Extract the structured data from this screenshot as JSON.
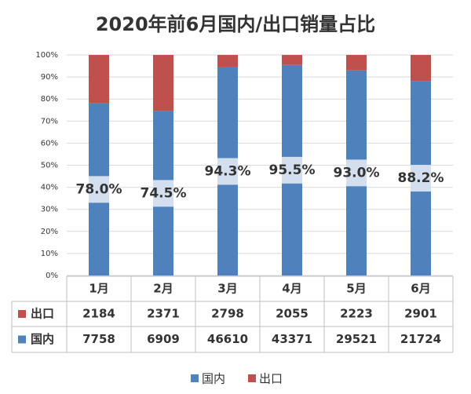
{
  "chart_data": {
    "type": "bar",
    "stacking": "percent",
    "title": "2020年前6月国内/出口销量占比",
    "categories": [
      "1月",
      "2月",
      "3月",
      "4月",
      "5月",
      "6月"
    ],
    "series": [
      {
        "name": "国内",
        "color": "#4f81bd",
        "values": [
          7758,
          6909,
          46610,
          43371,
          29521,
          21724
        ],
        "share_labels": [
          "78.0%",
          "74.5%",
          "94.3%",
          "95.5%",
          "93.0%",
          "88.2%"
        ]
      },
      {
        "name": "出口",
        "color": "#c0504d",
        "values": [
          2184,
          2371,
          2798,
          2055,
          2223,
          2901
        ]
      }
    ],
    "ylim": [
      0,
      100
    ],
    "yticks": [
      {
        "value": 0,
        "label": "0%"
      },
      {
        "value": 10,
        "label": "10%"
      },
      {
        "value": 20,
        "label": "20%"
      },
      {
        "value": 30,
        "label": "30%"
      },
      {
        "value": 40,
        "label": "40%"
      },
      {
        "value": 50,
        "label": "50%"
      },
      {
        "value": 60,
        "label": "60%"
      },
      {
        "value": 70,
        "label": "70%"
      },
      {
        "value": 80,
        "label": "80%"
      },
      {
        "value": 90,
        "label": "90%"
      },
      {
        "value": 100,
        "label": "100%"
      }
    ],
    "grid": true,
    "legend": "bottom"
  }
}
